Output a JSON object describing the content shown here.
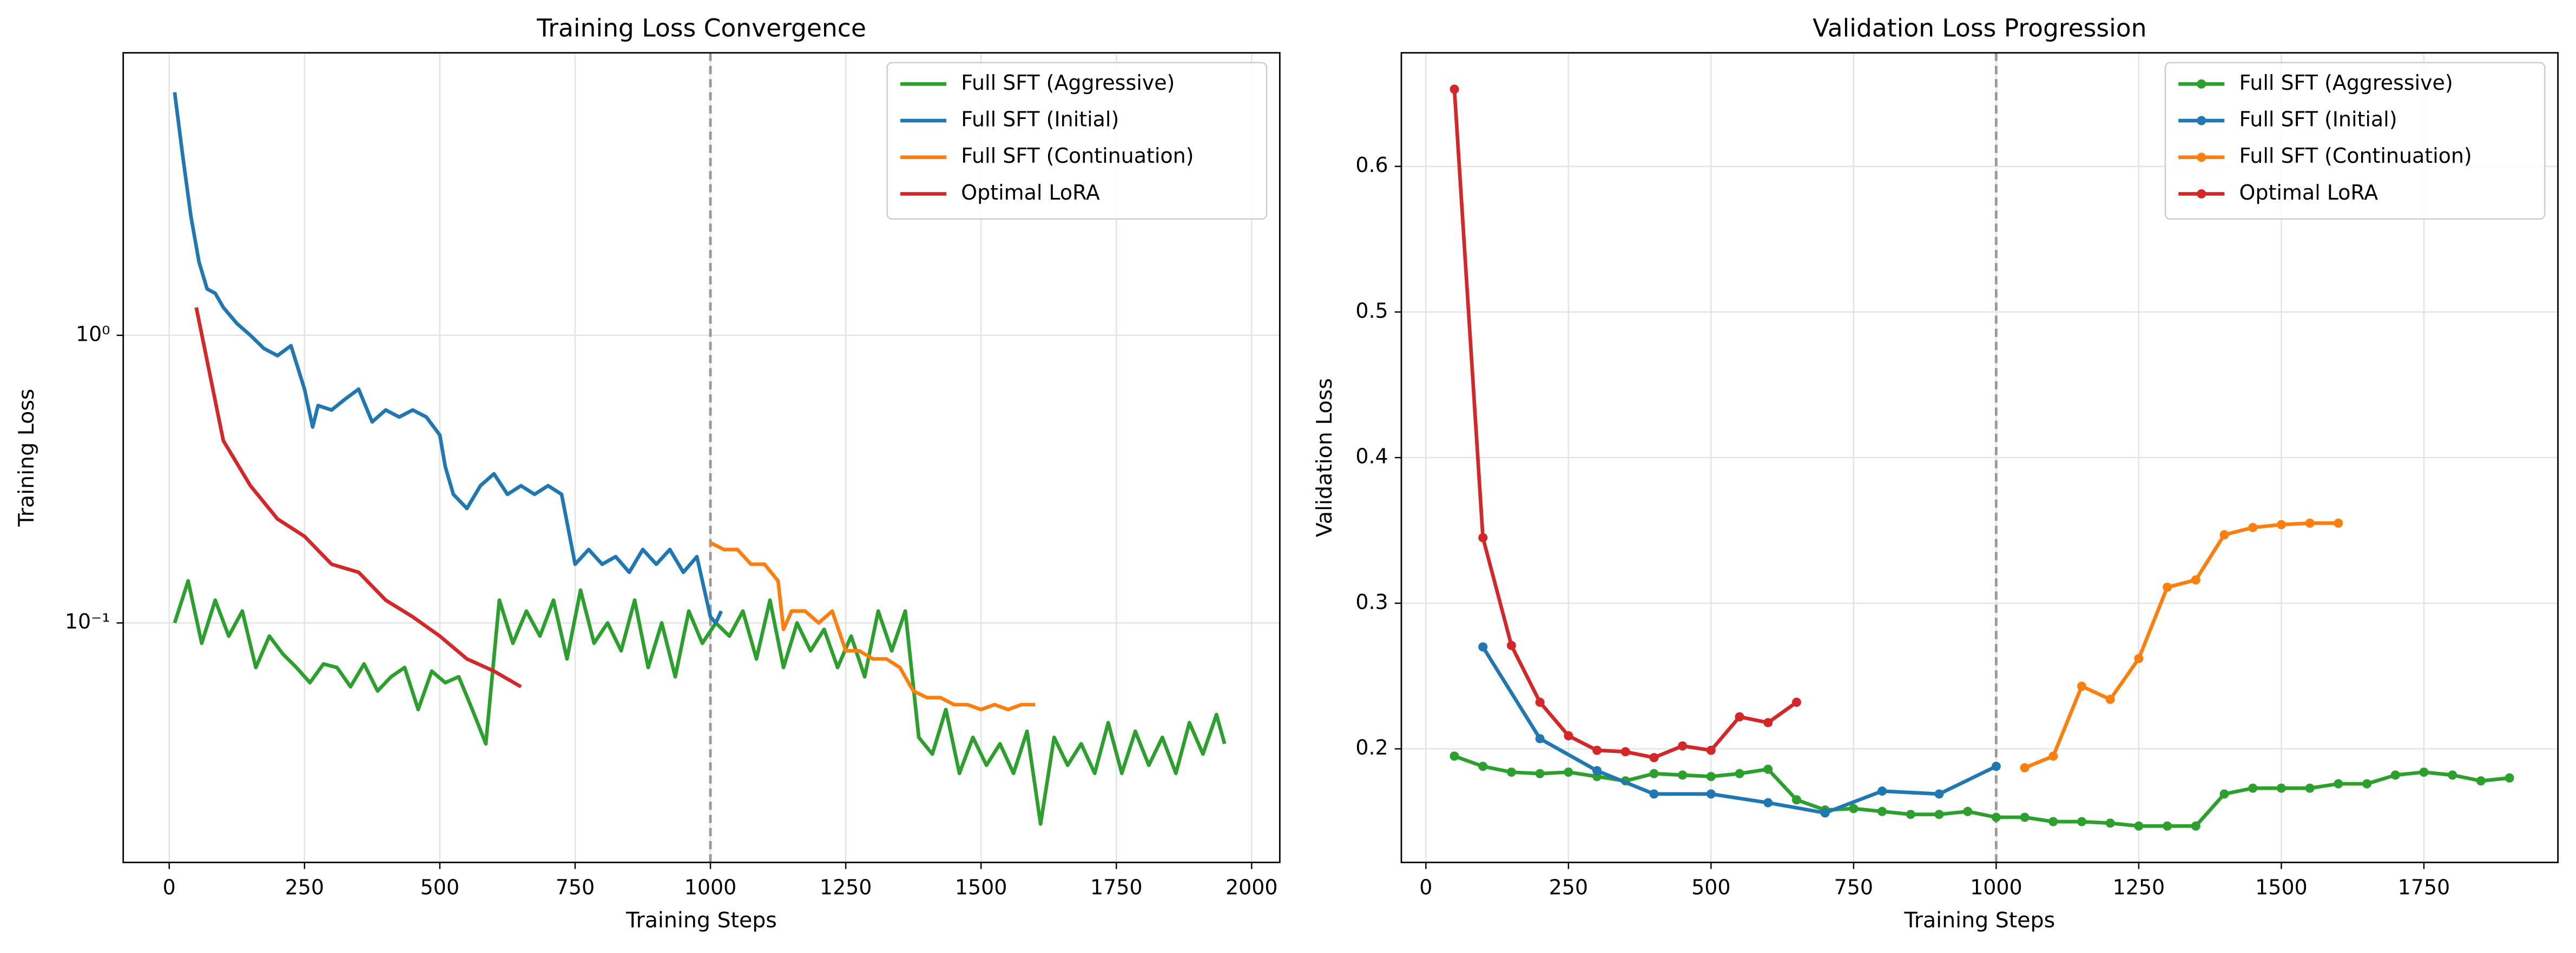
{
  "chart_data": [
    {
      "type": "line",
      "title": "Training Loss Convergence",
      "xlabel": "Training Steps",
      "ylabel": "Training Loss",
      "yscale": "log",
      "grid": true,
      "legend": "upper right",
      "markers": false,
      "vline": 1000,
      "xlim": [
        -85,
        2052
      ],
      "xticks": [
        0,
        250,
        500,
        750,
        1000,
        1250,
        1500,
        1750,
        2000
      ],
      "ylim": [
        0.0147,
        9.6
      ],
      "yticks": [
        {
          "value": 0.1,
          "label": "10⁻¹"
        },
        {
          "value": 1,
          "label": "10⁰"
        }
      ],
      "series": [
        {
          "name": "Full SFT (Aggressive)",
          "color": "#2ca02c",
          "x": [
            10,
            35,
            60,
            85,
            110,
            135,
            160,
            185,
            210,
            235,
            260,
            285,
            310,
            335,
            360,
            385,
            410,
            435,
            460,
            485,
            510,
            535,
            560,
            585,
            610,
            635,
            660,
            685,
            710,
            735,
            760,
            785,
            810,
            835,
            860,
            885,
            910,
            935,
            960,
            985,
            1010,
            1035,
            1060,
            1085,
            1110,
            1135,
            1160,
            1185,
            1210,
            1235,
            1260,
            1285,
            1310,
            1335,
            1360,
            1385,
            1410,
            1435,
            1460,
            1485,
            1510,
            1535,
            1560,
            1585,
            1610,
            1635,
            1660,
            1685,
            1710,
            1735,
            1760,
            1785,
            1810,
            1835,
            1860,
            1885,
            1910,
            1935,
            1950
          ],
          "values": [
            0.1,
            0.14,
            0.085,
            0.12,
            0.09,
            0.11,
            0.07,
            0.09,
            0.078,
            0.07,
            0.062,
            0.072,
            0.07,
            0.06,
            0.072,
            0.058,
            0.065,
            0.07,
            0.05,
            0.068,
            0.062,
            0.065,
            0.05,
            0.038,
            0.12,
            0.085,
            0.11,
            0.09,
            0.12,
            0.075,
            0.13,
            0.085,
            0.1,
            0.08,
            0.12,
            0.07,
            0.1,
            0.065,
            0.11,
            0.085,
            0.1,
            0.09,
            0.11,
            0.075,
            0.12,
            0.07,
            0.1,
            0.08,
            0.095,
            0.07,
            0.09,
            0.065,
            0.11,
            0.08,
            0.11,
            0.04,
            0.035,
            0.05,
            0.03,
            0.04,
            0.032,
            0.038,
            0.03,
            0.042,
            0.02,
            0.04,
            0.032,
            0.038,
            0.03,
            0.045,
            0.03,
            0.042,
            0.032,
            0.04,
            0.03,
            0.045,
            0.035,
            0.048,
            0.038
          ]
        },
        {
          "name": "Full SFT (Initial)",
          "color": "#1f77b4",
          "x": [
            10,
            25,
            40,
            55,
            70,
            85,
            100,
            125,
            150,
            175,
            200,
            225,
            250,
            265,
            275,
            300,
            325,
            350,
            375,
            400,
            425,
            450,
            475,
            500,
            510,
            525,
            550,
            575,
            600,
            625,
            650,
            675,
            700,
            725,
            750,
            775,
            800,
            825,
            850,
            875,
            900,
            925,
            950,
            975,
            1000,
            1010,
            1020
          ],
          "values": [
            7.0,
            4.2,
            2.6,
            1.8,
            1.45,
            1.4,
            1.25,
            1.1,
            1.0,
            0.9,
            0.85,
            0.92,
            0.65,
            0.48,
            0.57,
            0.55,
            0.6,
            0.65,
            0.5,
            0.55,
            0.52,
            0.55,
            0.52,
            0.45,
            0.35,
            0.28,
            0.25,
            0.3,
            0.33,
            0.28,
            0.3,
            0.28,
            0.3,
            0.28,
            0.16,
            0.18,
            0.16,
            0.17,
            0.15,
            0.18,
            0.16,
            0.18,
            0.15,
            0.17,
            0.105,
            0.1,
            0.11
          ]
        },
        {
          "name": "Full SFT (Continuation)",
          "color": "#ff7f0e",
          "x": [
            1000,
            1025,
            1050,
            1075,
            1100,
            1125,
            1135,
            1150,
            1175,
            1200,
            1225,
            1250,
            1275,
            1300,
            1325,
            1350,
            1375,
            1400,
            1425,
            1450,
            1475,
            1500,
            1525,
            1550,
            1575,
            1600
          ],
          "values": [
            0.19,
            0.18,
            0.18,
            0.16,
            0.16,
            0.14,
            0.095,
            0.11,
            0.11,
            0.1,
            0.11,
            0.08,
            0.08,
            0.075,
            0.075,
            0.07,
            0.058,
            0.055,
            0.055,
            0.052,
            0.052,
            0.05,
            0.052,
            0.05,
            0.052,
            0.052
          ]
        },
        {
          "name": "Optimal LoRA",
          "color": "#d62728",
          "x": [
            50,
            100,
            150,
            200,
            250,
            300,
            350,
            400,
            450,
            500,
            550,
            600,
            650
          ],
          "values": [
            1.25,
            0.43,
            0.3,
            0.23,
            0.2,
            0.16,
            0.15,
            0.12,
            0.105,
            0.09,
            0.075,
            0.068,
            0.06
          ]
        }
      ]
    },
    {
      "type": "line",
      "title": "Validation Loss Progression",
      "xlabel": "Training Steps",
      "ylabel": "Validation Loss",
      "yscale": "linear",
      "grid": true,
      "legend": "upper right",
      "markers": true,
      "vline": 1000,
      "xlim": [
        -43,
        1985
      ],
      "xticks": [
        0,
        250,
        500,
        750,
        1000,
        1250,
        1500,
        1750
      ],
      "ylim": [
        0.122,
        0.678
      ],
      "yticks": [
        0.2,
        0.3,
        0.4,
        0.5,
        0.6
      ],
      "series": [
        {
          "name": "Full SFT (Aggressive)",
          "color": "#2ca02c",
          "x": [
            50,
            100,
            150,
            200,
            250,
            300,
            350,
            400,
            450,
            500,
            550,
            600,
            650,
            700,
            750,
            800,
            850,
            900,
            950,
            1000,
            1050,
            1100,
            1150,
            1200,
            1250,
            1300,
            1350,
            1400,
            1450,
            1500,
            1550,
            1600,
            1650,
            1700,
            1750,
            1800,
            1850,
            1900
          ],
          "values": [
            0.195,
            0.188,
            0.184,
            0.183,
            0.184,
            0.181,
            0.178,
            0.183,
            0.182,
            0.181,
            0.183,
            0.186,
            0.165,
            0.158,
            0.159,
            0.157,
            0.155,
            0.155,
            0.157,
            0.153,
            0.153,
            0.15,
            0.15,
            0.149,
            0.147,
            0.147,
            0.147,
            0.169,
            0.173,
            0.173,
            0.173,
            0.176,
            0.176,
            0.182,
            0.184,
            0.182,
            0.178,
            0.18
          ]
        },
        {
          "name": "Full SFT (Initial)",
          "color": "#1f77b4",
          "x": [
            100,
            200,
            300,
            400,
            500,
            600,
            700,
            800,
            900,
            1000
          ],
          "values": [
            0.27,
            0.207,
            0.185,
            0.169,
            0.169,
            0.163,
            0.156,
            0.171,
            0.169,
            0.188
          ]
        },
        {
          "name": "Full SFT (Continuation)",
          "color": "#ff7f0e",
          "x": [
            1050,
            1100,
            1150,
            1200,
            1250,
            1300,
            1350,
            1400,
            1450,
            1500,
            1550,
            1600
          ],
          "values": [
            0.187,
            0.195,
            0.243,
            0.234,
            0.262,
            0.311,
            0.316,
            0.347,
            0.352,
            0.354,
            0.355,
            0.355
          ]
        },
        {
          "name": "Optimal LoRA",
          "color": "#d62728",
          "x": [
            50,
            100,
            150,
            200,
            250,
            300,
            350,
            400,
            450,
            500,
            550,
            600,
            650
          ],
          "values": [
            0.653,
            0.345,
            0.271,
            0.232,
            0.209,
            0.199,
            0.198,
            0.194,
            0.202,
            0.199,
            0.222,
            0.218,
            0.232
          ]
        }
      ]
    }
  ]
}
